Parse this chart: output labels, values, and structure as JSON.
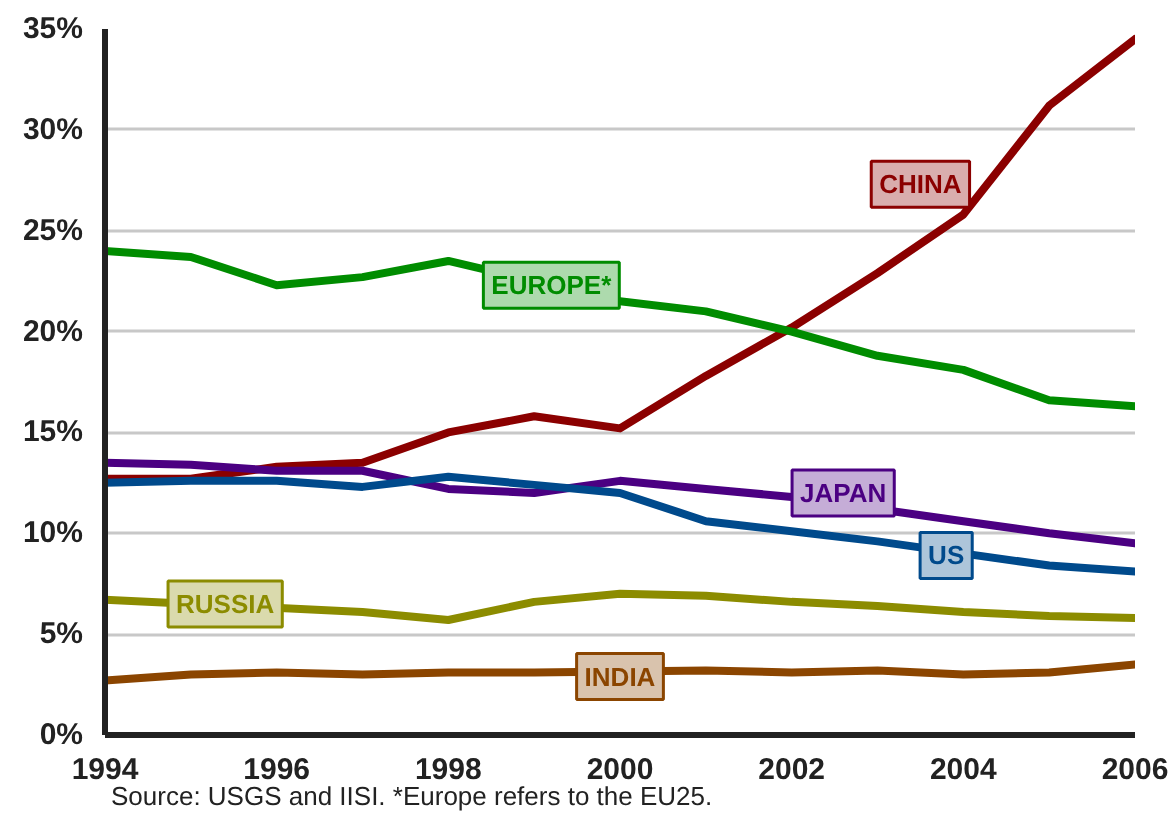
{
  "chart_data": {
    "type": "line",
    "x": [
      1994,
      1995,
      1996,
      1997,
      1998,
      1999,
      2000,
      2001,
      2002,
      2003,
      2004,
      2005,
      2006
    ],
    "xlim": [
      1994,
      2006
    ],
    "xticks": [
      1994,
      1996,
      1998,
      2000,
      2002,
      2004,
      2006
    ],
    "ylim": [
      0,
      35
    ],
    "yticks": [
      {
        "value": 0,
        "label": "0%"
      },
      {
        "value": 5,
        "label": "5%"
      },
      {
        "value": 10,
        "label": "10%"
      },
      {
        "value": 15,
        "label": "15%"
      },
      {
        "value": 20,
        "label": "20%"
      },
      {
        "value": 25,
        "label": "25%"
      },
      {
        "value": 30,
        "label": "30%"
      },
      {
        "value": 35,
        "label": "35%"
      }
    ],
    "grid": "y",
    "marker": "none",
    "line_style": "solid",
    "series": [
      {
        "name": "CHINA",
        "color": "#8b0000",
        "values": [
          12.7,
          12.7,
          13.3,
          13.5,
          15.0,
          15.8,
          15.2,
          17.8,
          20.2,
          22.9,
          25.8,
          31.2,
          34.5
        ]
      },
      {
        "name": "EUROPE*",
        "color": "#008c00",
        "values": [
          24.0,
          23.7,
          22.3,
          22.7,
          23.5,
          null,
          21.5,
          21.0,
          20.0,
          18.8,
          18.1,
          16.6,
          16.3
        ]
      },
      {
        "name": "JAPAN",
        "color": "#4b0082",
        "values": [
          13.5,
          13.4,
          13.1,
          13.1,
          12.2,
          12.0,
          12.6,
          12.2,
          11.8,
          null,
          10.6,
          10.0,
          9.5
        ]
      },
      {
        "name": "US",
        "color": "#004a8c",
        "values": [
          12.5,
          12.6,
          12.6,
          12.3,
          12.8,
          12.4,
          12.0,
          10.6,
          10.1,
          9.6,
          null,
          8.4,
          8.1
        ]
      },
      {
        "name": "RUSSIA",
        "color": "#8c8c00",
        "values": [
          6.7,
          null,
          null,
          6.1,
          5.7,
          6.6,
          7.0,
          6.9,
          6.6,
          6.4,
          6.1,
          5.9,
          5.8
        ]
      },
      {
        "name": "INDIA",
        "color": "#8b4500",
        "values": [
          2.7,
          3.0,
          3.1,
          3.0,
          3.1,
          3.1,
          null,
          3.2,
          3.1,
          3.2,
          3.0,
          3.1,
          3.5
        ]
      }
    ],
    "annotations": [
      "Source: USGS and IISI. *Europe refers to the EU25."
    ]
  }
}
